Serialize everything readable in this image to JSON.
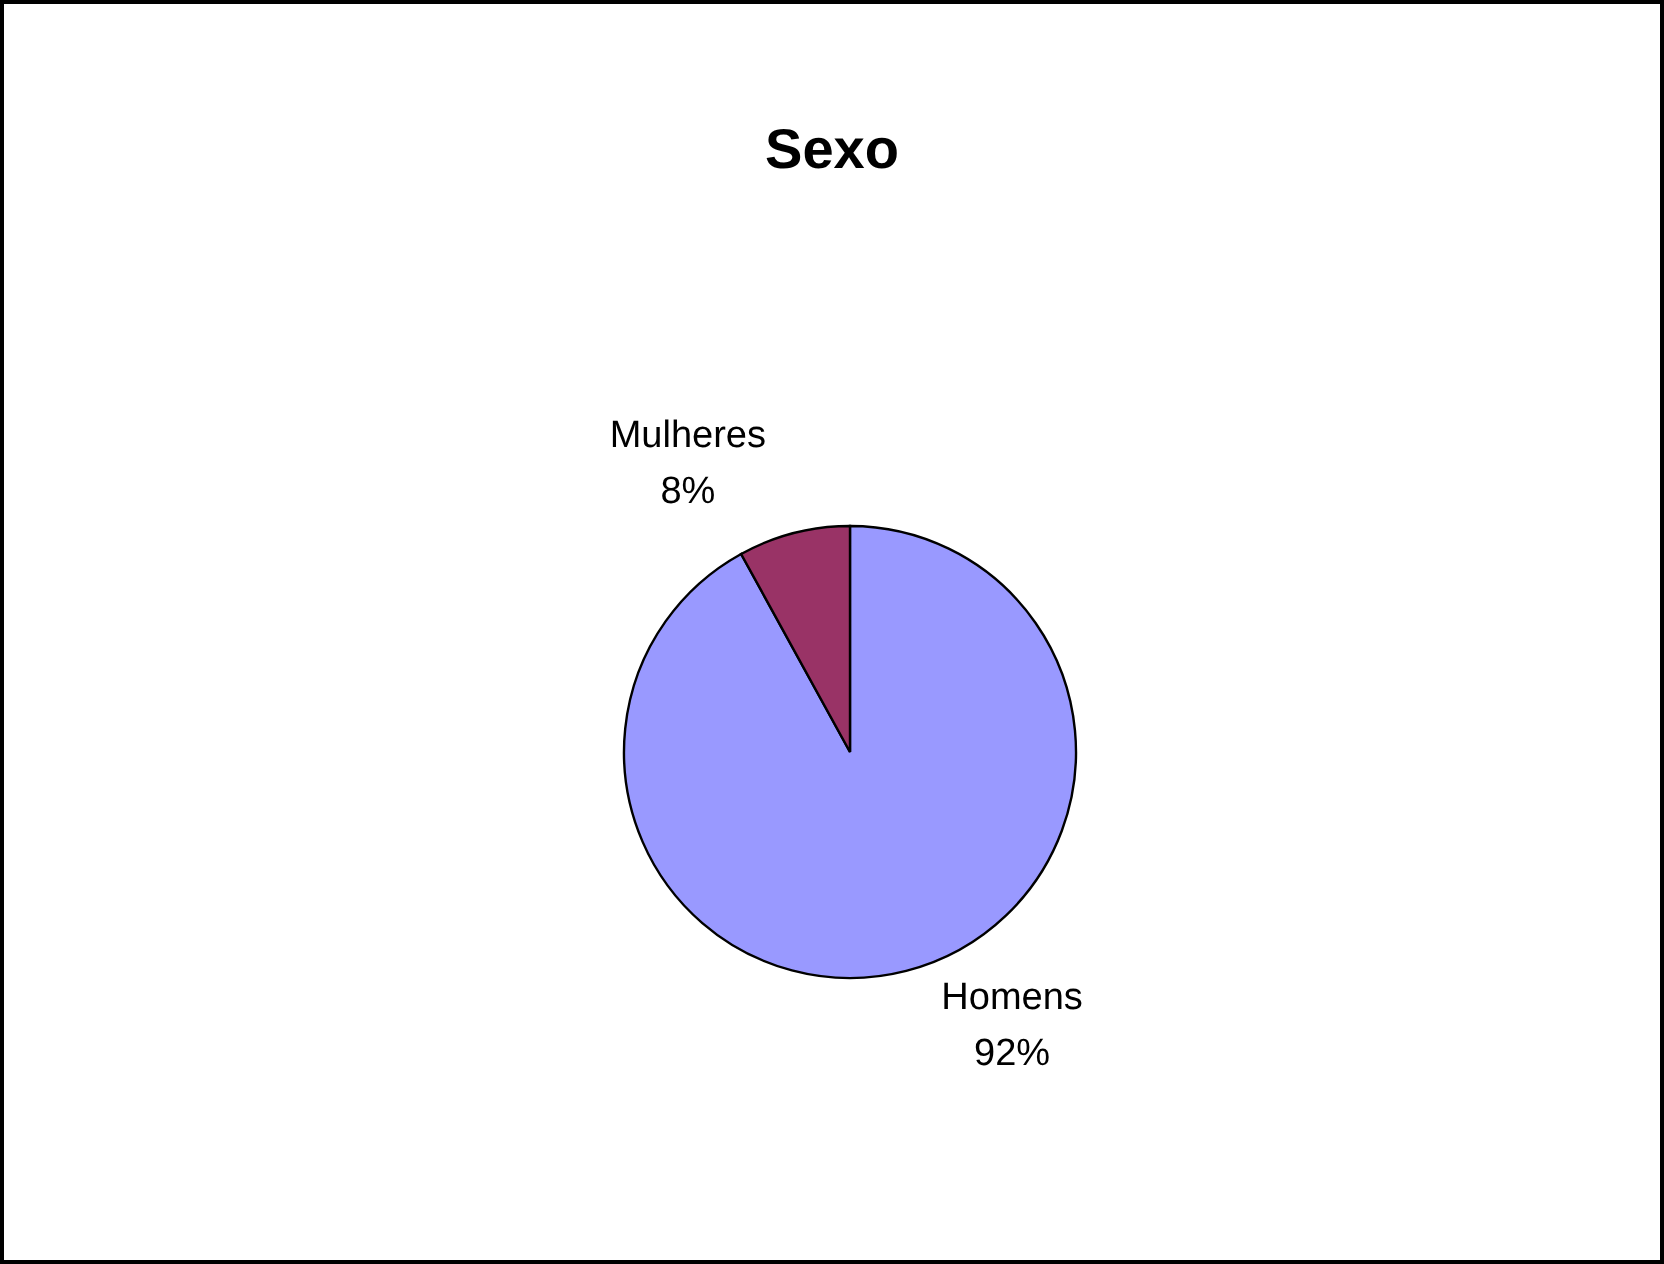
{
  "chart_data": {
    "type": "pie",
    "title": "Sexo",
    "categories": [
      "Homens",
      "Mulheres"
    ],
    "values": [
      92,
      8
    ],
    "value_labels": [
      "92%",
      "8%"
    ],
    "colors": [
      "#9999ff",
      "#993366"
    ]
  }
}
